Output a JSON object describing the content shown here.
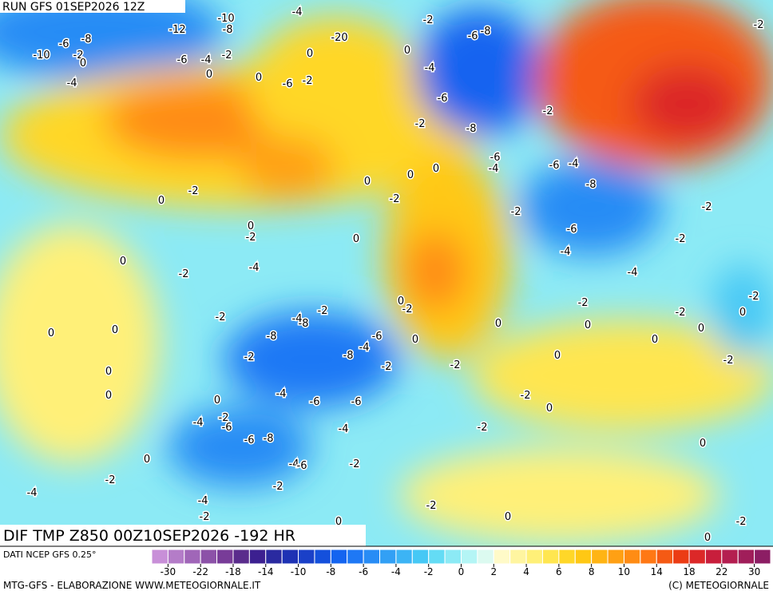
{
  "header": {
    "run": "RUN GFS 01SEP2026 12Z"
  },
  "footer": {
    "title": "DIF TMP Z850 00Z10SEP2026 -192 HR",
    "source": "DATI NCEP GFS 0.25°",
    "credit": "MTG-GFS - ELABORAZIONE WWW.METEOGIORNALE.IT",
    "copyright": "(C) METEOGIORNALE"
  },
  "legend": {
    "colors": [
      "#c88fd8",
      "#b47cc8",
      "#a066b8",
      "#8c52a8",
      "#783c98",
      "#5a2c8c",
      "#3c2090",
      "#2a2aa0",
      "#1e32b4",
      "#1a40c8",
      "#1450dc",
      "#1464f0",
      "#1e78f5",
      "#288cf5",
      "#32a0f5",
      "#3cb4f5",
      "#46c8f5",
      "#64dcf5",
      "#8ceaf5",
      "#b4f5f5",
      "#dcfaf0",
      "#fffac8",
      "#fff5a0",
      "#fff078",
      "#ffe650",
      "#ffd728",
      "#ffc814",
      "#ffb414",
      "#ffa014",
      "#ff8c14",
      "#ff7814",
      "#f55a14",
      "#eb3c14",
      "#dc2828",
      "#c81e3c",
      "#b41e50",
      "#a01e5a",
      "#8c1e64"
    ],
    "ticks": [
      -30,
      -22,
      -18,
      -14,
      -10,
      -8,
      -6,
      -4,
      -2,
      0,
      2,
      4,
      6,
      8,
      10,
      14,
      18,
      22,
      30
    ]
  },
  "map": {
    "labels": [
      -4,
      -2,
      -10,
      -12,
      -8,
      -6,
      -8,
      -10,
      -2,
      0,
      -20,
      -2,
      -6,
      -8,
      0,
      0,
      -4,
      -6,
      -4,
      -2,
      0,
      0,
      -6,
      -2,
      -4,
      -6,
      -2,
      -8,
      -2,
      -6,
      -4,
      -6,
      -4,
      -8,
      0,
      0,
      0,
      -2,
      0,
      -2,
      -2,
      -2,
      0,
      -2,
      -6,
      -2,
      0,
      -4,
      0,
      -4,
      -2,
      -4,
      -2,
      -2,
      -2,
      0,
      -2,
      -2,
      0,
      -4,
      -8,
      -2,
      0,
      0,
      0,
      0,
      -8,
      -6,
      0,
      -4,
      -8,
      0,
      0,
      -2,
      0,
      -2,
      -2,
      -2,
      0,
      0,
      -4,
      -6,
      -6,
      -2,
      0,
      0,
      -4,
      -2,
      -6,
      -4,
      -2,
      -6,
      -8,
      0,
      0,
      -4,
      -6,
      -2,
      -2,
      -2,
      -4,
      -4,
      -2,
      -2,
      0,
      0,
      -2,
      0
    ]
  }
}
